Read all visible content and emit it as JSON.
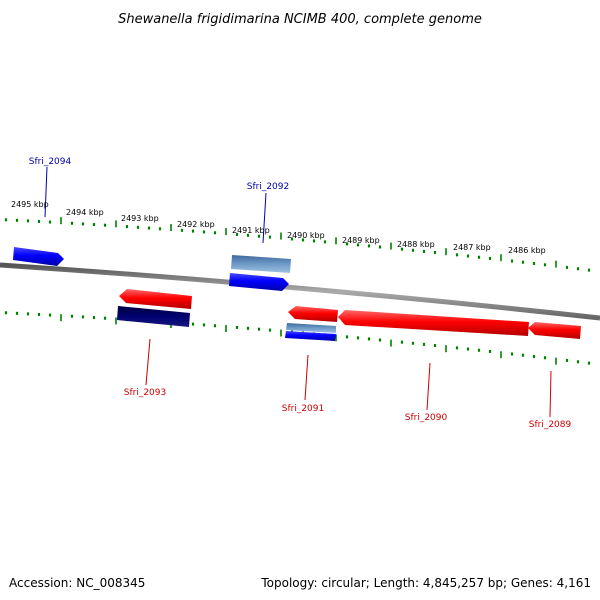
{
  "title": "Shewanella frigidimarina NCIMB 400, complete genome",
  "footer": {
    "accession": "Accession: NC_008345",
    "topology": "Topology: circular; Length: 4,845,257 bp; Genes: 4,161"
  },
  "colors": {
    "plus_strand": "#0000ff",
    "minus_strand": "#ff0000",
    "ticks": "#008000",
    "backbone": "#888888",
    "plus_label": "#0000aa",
    "minus_label": "#cc0000",
    "feature_light": "#5a86b8",
    "feature_dark": "#000066"
  },
  "ticks": [
    "2495 kbp",
    "2494 kbp",
    "2493 kbp",
    "2492 kbp",
    "2491 kbp",
    "2490 kbp",
    "2489 kbp",
    "2488 kbp",
    "2487 kbp",
    "2486 kbp"
  ],
  "genes": [
    {
      "name": "Sfri_2094",
      "strand": "plus"
    },
    {
      "name": "Sfri_2092",
      "strand": "plus"
    },
    {
      "name": "Sfri_2093",
      "strand": "minus"
    },
    {
      "name": "Sfri_2091",
      "strand": "minus"
    },
    {
      "name": "Sfri_2090",
      "strand": "minus"
    },
    {
      "name": "Sfri_2089",
      "strand": "minus"
    }
  ]
}
